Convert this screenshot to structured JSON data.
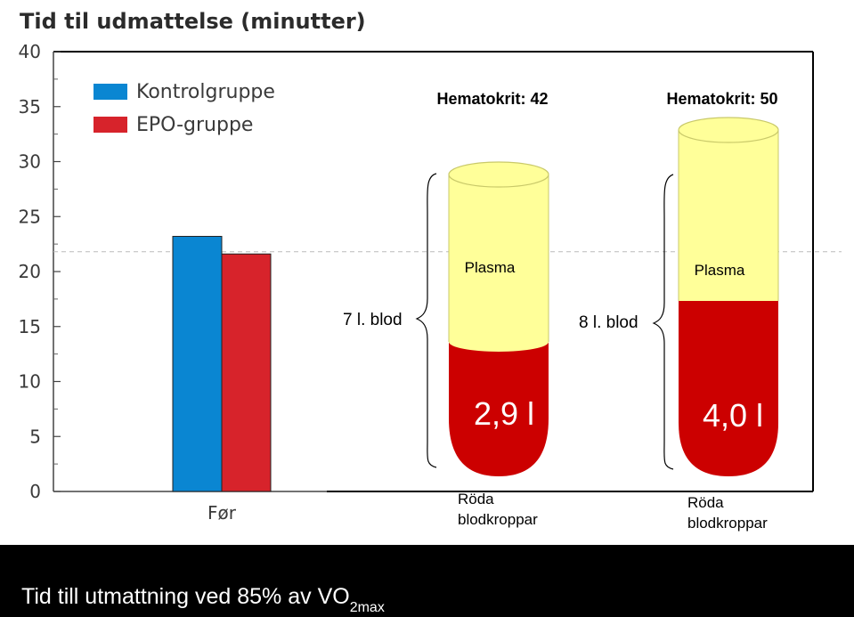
{
  "chart_data": {
    "type": "bar",
    "title": "Tid til udmattelse (minutter)",
    "categories": [
      "Før"
    ],
    "series": [
      {
        "name": "Kontrolgruppe",
        "values": [
          23.2
        ],
        "color": "#0a86d2"
      },
      {
        "name": "EPO-gruppe",
        "values": [
          21.6
        ],
        "color": "#d7232b"
      }
    ],
    "ylim": [
      0,
      40
    ],
    "yticks": [
      0,
      5,
      10,
      15,
      20,
      25,
      30,
      35,
      40
    ],
    "reference_line": 21.8,
    "legend_position": "top-left",
    "xlabel": "",
    "ylabel": ""
  },
  "tubes": [
    {
      "header": "Hematokrit: 42",
      "blood_label": "7 l. blod",
      "plasma_label": "Plasma",
      "rbc_value": "2,9 l",
      "rbc_label_line1": "Röda",
      "rbc_label_line2": "blodkroppar",
      "hematocrit": 42,
      "total_blood_l": 7,
      "rbc_l": 2.9
    },
    {
      "header": "Hematokrit: 50",
      "blood_label": "8 l. blod",
      "plasma_label": "Plasma",
      "rbc_value": "4,0 l",
      "rbc_label_line1": "Röda",
      "rbc_label_line2": "blodkroppar",
      "hematocrit": 50,
      "total_blood_l": 8,
      "rbc_l": 4.0
    }
  ],
  "colors": {
    "plasma": "#ffff99",
    "plasma_stroke": "#c9c96a",
    "rbc": "#cc0000",
    "title": "#2b2b2b",
    "axis_text": "#3a3a3a"
  },
  "caption": {
    "main": "Tid till utmattning ved 85% av VO",
    "subscript": "2max"
  }
}
